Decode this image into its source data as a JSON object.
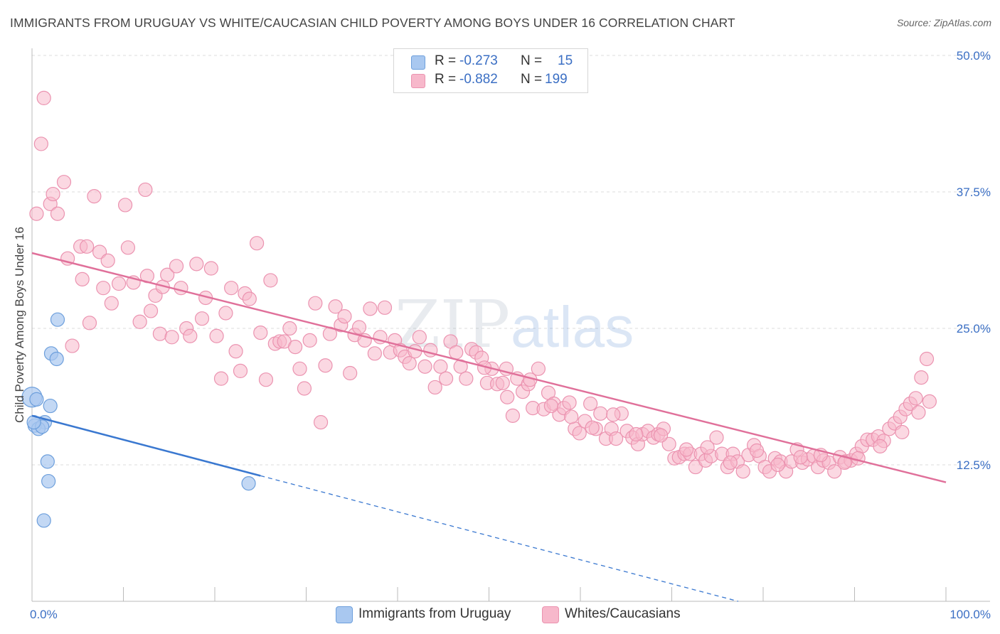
{
  "title": "IMMIGRANTS FROM URUGUAY VS WHITE/CAUCASIAN CHILD POVERTY AMONG BOYS UNDER 16 CORRELATION CHART",
  "source": "Source: ZipAtlas.com",
  "watermark": {
    "zip": "ZIP",
    "atlas": "atlas"
  },
  "stats": [
    {
      "r_label": "R =",
      "r_value": "-0.273",
      "n_label": "N =",
      "n_value": "15",
      "color": "#a9c8f0"
    },
    {
      "r_label": "R =",
      "r_value": "-0.882",
      "n_label": "N =",
      "n_value": "199",
      "color": "#f7b8cb"
    }
  ],
  "legend": [
    {
      "label": "Immigrants from Uruguay",
      "color": "#a9c8f0"
    },
    {
      "label": "Whites/Caucasians",
      "color": "#f7b8cb"
    }
  ],
  "chart_data": {
    "type": "scatter",
    "ylabel": "Child Poverty Among Boys Under 16",
    "xlim": [
      0,
      100
    ],
    "ylim": [
      0,
      50
    ],
    "x_tick_labels": [
      "0.0%",
      "100.0%"
    ],
    "y_ticks": [
      12.5,
      25.0,
      37.5,
      50.0
    ],
    "y_tick_labels": [
      "12.5%",
      "25.0%",
      "37.5%",
      "50.0%"
    ],
    "grid": true,
    "series": [
      {
        "name": "Immigrants from Uruguay",
        "color": "#a9c8f0",
        "stroke": "#6d9fdc",
        "points": [
          [
            0.0,
            18.7
          ],
          [
            0.5,
            18.5
          ],
          [
            2.8,
            25.8
          ],
          [
            2.1,
            22.7
          ],
          [
            2.7,
            22.2
          ],
          [
            2.0,
            17.9
          ],
          [
            1.4,
            16.4
          ],
          [
            0.3,
            16.1
          ],
          [
            0.7,
            15.8
          ],
          [
            1.1,
            16.0
          ],
          [
            1.7,
            12.8
          ],
          [
            1.8,
            11.0
          ],
          [
            1.3,
            7.4
          ],
          [
            23.7,
            10.8
          ],
          [
            0.2,
            16.4
          ]
        ],
        "trend": {
          "x": [
            0,
            25
          ],
          "y": [
            17.0,
            11.5
          ],
          "dashed_to": [
            100,
            -5.0
          ],
          "color": "#3a78d0"
        }
      },
      {
        "name": "Whites/Caucasians",
        "color": "#f7b8cb",
        "stroke": "#eb93b0",
        "points": [
          [
            0.5,
            35.5
          ],
          [
            1.3,
            46.1
          ],
          [
            1.0,
            41.9
          ],
          [
            2.0,
            36.4
          ],
          [
            2.3,
            37.3
          ],
          [
            2.8,
            35.5
          ],
          [
            3.5,
            38.4
          ],
          [
            3.9,
            31.4
          ],
          [
            4.4,
            23.4
          ],
          [
            5.3,
            32.5
          ],
          [
            5.5,
            29.5
          ],
          [
            6.0,
            32.5
          ],
          [
            6.3,
            25.5
          ],
          [
            6.8,
            37.1
          ],
          [
            7.4,
            32.0
          ],
          [
            7.8,
            28.7
          ],
          [
            8.3,
            31.2
          ],
          [
            8.7,
            27.3
          ],
          [
            9.5,
            29.1
          ],
          [
            10.2,
            36.3
          ],
          [
            10.5,
            32.4
          ],
          [
            11.1,
            29.2
          ],
          [
            11.8,
            25.6
          ],
          [
            12.4,
            37.7
          ],
          [
            12.6,
            29.8
          ],
          [
            13.0,
            26.6
          ],
          [
            13.5,
            28.0
          ],
          [
            14.0,
            24.5
          ],
          [
            14.3,
            28.8
          ],
          [
            14.8,
            29.9
          ],
          [
            15.3,
            24.2
          ],
          [
            15.8,
            30.7
          ],
          [
            16.3,
            28.7
          ],
          [
            16.9,
            25.0
          ],
          [
            17.3,
            24.3
          ],
          [
            18.0,
            30.9
          ],
          [
            18.6,
            25.9
          ],
          [
            19.0,
            27.8
          ],
          [
            19.6,
            30.5
          ],
          [
            20.2,
            24.3
          ],
          [
            20.7,
            20.4
          ],
          [
            21.2,
            26.4
          ],
          [
            21.8,
            28.7
          ],
          [
            22.3,
            22.9
          ],
          [
            22.8,
            21.1
          ],
          [
            23.3,
            28.2
          ],
          [
            23.8,
            27.7
          ],
          [
            24.6,
            32.8
          ],
          [
            25.0,
            24.6
          ],
          [
            25.6,
            20.3
          ],
          [
            26.1,
            29.4
          ],
          [
            26.6,
            23.6
          ],
          [
            27.1,
            23.8
          ],
          [
            27.6,
            23.8
          ],
          [
            28.2,
            25.0
          ],
          [
            28.8,
            23.3
          ],
          [
            29.3,
            21.3
          ],
          [
            29.8,
            19.5
          ],
          [
            30.4,
            23.9
          ],
          [
            31.0,
            27.3
          ],
          [
            31.6,
            16.4
          ],
          [
            32.1,
            21.6
          ],
          [
            32.6,
            24.5
          ],
          [
            33.2,
            27.0
          ],
          [
            33.8,
            25.3
          ],
          [
            34.2,
            26.1
          ],
          [
            34.8,
            20.9
          ],
          [
            35.3,
            24.4
          ],
          [
            35.8,
            25.1
          ],
          [
            36.4,
            23.9
          ],
          [
            37.0,
            26.8
          ],
          [
            37.5,
            22.7
          ],
          [
            38.1,
            24.2
          ],
          [
            38.6,
            26.9
          ],
          [
            39.2,
            22.8
          ],
          [
            39.7,
            23.9
          ],
          [
            40.3,
            23.0
          ],
          [
            40.8,
            22.4
          ],
          [
            41.3,
            21.8
          ],
          [
            41.9,
            22.9
          ],
          [
            42.4,
            24.2
          ],
          [
            43.0,
            21.5
          ],
          [
            43.6,
            23.0
          ],
          [
            44.1,
            19.6
          ],
          [
            44.7,
            21.5
          ],
          [
            45.3,
            20.4
          ],
          [
            45.8,
            23.8
          ],
          [
            46.4,
            22.8
          ],
          [
            46.9,
            21.5
          ],
          [
            47.5,
            20.4
          ],
          [
            48.1,
            23.1
          ],
          [
            48.6,
            22.8
          ],
          [
            49.2,
            22.3
          ],
          [
            49.8,
            20.0
          ],
          [
            50.3,
            21.3
          ],
          [
            50.9,
            19.9
          ],
          [
            51.5,
            20.0
          ],
          [
            52.0,
            18.7
          ],
          [
            52.6,
            17.0
          ],
          [
            53.1,
            20.4
          ],
          [
            53.7,
            19.2
          ],
          [
            54.3,
            19.9
          ],
          [
            54.8,
            17.7
          ],
          [
            55.4,
            21.3
          ],
          [
            56.0,
            17.6
          ],
          [
            56.5,
            19.1
          ],
          [
            57.1,
            18.1
          ],
          [
            57.7,
            17.1
          ],
          [
            58.2,
            17.7
          ],
          [
            58.8,
            18.2
          ],
          [
            59.4,
            15.8
          ],
          [
            59.9,
            15.4
          ],
          [
            60.5,
            16.5
          ],
          [
            61.1,
            18.1
          ],
          [
            61.7,
            15.8
          ],
          [
            62.2,
            17.2
          ],
          [
            62.8,
            14.9
          ],
          [
            63.4,
            15.8
          ],
          [
            63.9,
            14.9
          ],
          [
            64.5,
            17.2
          ],
          [
            65.1,
            15.6
          ],
          [
            65.7,
            15.0
          ],
          [
            66.3,
            14.4
          ],
          [
            66.8,
            15.3
          ],
          [
            67.4,
            15.6
          ],
          [
            68.0,
            15.0
          ],
          [
            68.5,
            15.3
          ],
          [
            69.1,
            15.8
          ],
          [
            69.7,
            14.4
          ],
          [
            70.3,
            13.1
          ],
          [
            70.8,
            13.2
          ],
          [
            71.4,
            13.5
          ],
          [
            72.0,
            13.5
          ],
          [
            72.6,
            12.3
          ],
          [
            73.2,
            13.5
          ],
          [
            73.7,
            12.9
          ],
          [
            74.3,
            13.3
          ],
          [
            74.9,
            15.0
          ],
          [
            75.5,
            13.5
          ],
          [
            76.1,
            12.3
          ],
          [
            76.7,
            13.5
          ],
          [
            77.2,
            12.8
          ],
          [
            77.8,
            11.9
          ],
          [
            78.4,
            13.4
          ],
          [
            79.0,
            14.3
          ],
          [
            79.6,
            13.3
          ],
          [
            80.2,
            12.3
          ],
          [
            80.7,
            11.9
          ],
          [
            81.3,
            13.1
          ],
          [
            81.9,
            12.8
          ],
          [
            82.5,
            11.9
          ],
          [
            83.1,
            12.8
          ],
          [
            83.7,
            13.9
          ],
          [
            84.3,
            12.7
          ],
          [
            84.9,
            13.0
          ],
          [
            85.5,
            13.3
          ],
          [
            86.0,
            12.3
          ],
          [
            86.6,
            12.9
          ],
          [
            87.2,
            12.7
          ],
          [
            87.8,
            11.9
          ],
          [
            88.4,
            13.2
          ],
          [
            89.0,
            12.8
          ],
          [
            89.6,
            12.9
          ],
          [
            90.2,
            13.5
          ],
          [
            90.8,
            14.2
          ],
          [
            91.4,
            14.8
          ],
          [
            92.0,
            14.8
          ],
          [
            92.6,
            15.1
          ],
          [
            93.2,
            14.7
          ],
          [
            93.8,
            15.8
          ],
          [
            94.4,
            16.3
          ],
          [
            95.0,
            16.9
          ],
          [
            95.6,
            17.6
          ],
          [
            96.1,
            18.1
          ],
          [
            96.7,
            18.6
          ],
          [
            97.3,
            20.5
          ],
          [
            97.9,
            22.2
          ],
          [
            98.2,
            18.3
          ],
          [
            97.0,
            17.3
          ],
          [
            95.2,
            15.5
          ],
          [
            92.8,
            14.2
          ],
          [
            90.4,
            13.1
          ],
          [
            88.9,
            12.7
          ],
          [
            86.3,
            13.4
          ],
          [
            84.1,
            13.2
          ],
          [
            81.6,
            12.5
          ],
          [
            79.3,
            13.8
          ],
          [
            76.4,
            12.7
          ],
          [
            73.9,
            14.1
          ],
          [
            71.6,
            13.9
          ],
          [
            68.8,
            15.2
          ],
          [
            66.1,
            15.3
          ],
          [
            63.6,
            17.1
          ],
          [
            61.3,
            15.9
          ],
          [
            59.0,
            16.9
          ],
          [
            56.8,
            17.9
          ],
          [
            54.5,
            20.3
          ],
          [
            51.9,
            21.3
          ],
          [
            49.5,
            21.4
          ]
        ],
        "trend": {
          "x": [
            0,
            100
          ],
          "y": [
            31.9,
            10.9
          ],
          "color": "#e0709a"
        }
      }
    ]
  }
}
